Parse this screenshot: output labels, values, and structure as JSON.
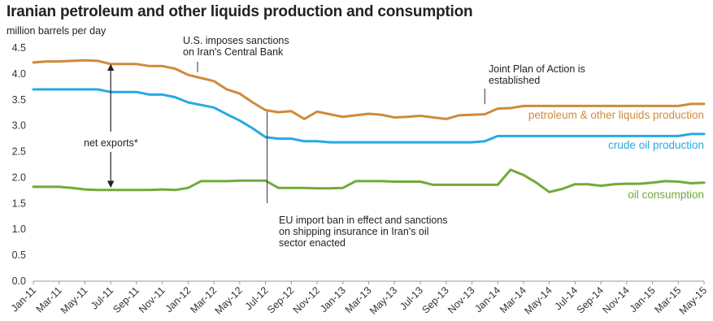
{
  "chart_data": {
    "type": "line",
    "title": "Iranian petroleum and other liquids production and consumption",
    "ylabel": "million barrels per day",
    "ylim": [
      0,
      4.5
    ],
    "yticks": [
      "0.0",
      "0.5",
      "1.0",
      "1.5",
      "2.0",
      "2.5",
      "3.0",
      "3.5",
      "4.0",
      "4.5"
    ],
    "grid": false,
    "x": [
      "Jan-11",
      "Feb-11",
      "Mar-11",
      "Apr-11",
      "May-11",
      "Jun-11",
      "Jul-11",
      "Aug-11",
      "Sep-11",
      "Oct-11",
      "Nov-11",
      "Dec-11",
      "Jan-12",
      "Feb-12",
      "Mar-12",
      "Apr-12",
      "May-12",
      "Jun-12",
      "Jul-12",
      "Aug-12",
      "Sep-12",
      "Oct-12",
      "Nov-12",
      "Dec-12",
      "Jan-13",
      "Feb-13",
      "Mar-13",
      "Apr-13",
      "May-13",
      "Jun-13",
      "Jul-13",
      "Aug-13",
      "Sep-13",
      "Oct-13",
      "Nov-13",
      "Dec-13",
      "Jan-14",
      "Feb-14",
      "Mar-14",
      "Apr-14",
      "May-14",
      "Jun-14",
      "Jul-14",
      "Aug-14",
      "Sep-14",
      "Oct-14",
      "Nov-14",
      "Dec-14",
      "Jan-15",
      "Feb-15",
      "Mar-15",
      "Apr-15",
      "May-15"
    ],
    "xtick_labels": [
      "Jan-11",
      "Mar-11",
      "May-11",
      "Jul-11",
      "Sep-11",
      "Nov-11",
      "Jan-12",
      "Mar-12",
      "May-12",
      "Jul-12",
      "Sep-12",
      "Nov-12",
      "Jan-13",
      "Mar-13",
      "May-13",
      "Jul-13",
      "Sep-13",
      "Nov-13",
      "Jan-14",
      "Mar-14",
      "May-14",
      "Jul-14",
      "Sep-14",
      "Nov-14",
      "Jan-15",
      "Mar-15",
      "May-15"
    ],
    "series": [
      {
        "name": "petroleum & other liquids production",
        "color": "#d08a3c",
        "values": [
          4.22,
          4.24,
          4.24,
          4.25,
          4.26,
          4.25,
          4.19,
          4.19,
          4.19,
          4.15,
          4.15,
          4.1,
          3.98,
          3.92,
          3.86,
          3.7,
          3.62,
          3.45,
          3.3,
          3.26,
          3.28,
          3.13,
          3.27,
          3.22,
          3.17,
          3.2,
          3.23,
          3.21,
          3.16,
          3.17,
          3.19,
          3.16,
          3.13,
          3.2,
          3.21,
          3.22,
          3.33,
          3.34,
          3.38,
          3.38,
          3.38,
          3.38,
          3.38,
          3.38,
          3.38,
          3.38,
          3.38,
          3.38,
          3.38,
          3.38,
          3.38,
          3.42,
          3.42
        ]
      },
      {
        "name": "crude oil production",
        "color": "#27aae1",
        "values": [
          3.7,
          3.7,
          3.7,
          3.7,
          3.7,
          3.7,
          3.65,
          3.65,
          3.65,
          3.6,
          3.6,
          3.55,
          3.45,
          3.4,
          3.35,
          3.22,
          3.1,
          2.95,
          2.78,
          2.75,
          2.75,
          2.7,
          2.7,
          2.68,
          2.68,
          2.68,
          2.68,
          2.68,
          2.68,
          2.68,
          2.68,
          2.68,
          2.68,
          2.68,
          2.68,
          2.7,
          2.8,
          2.8,
          2.8,
          2.8,
          2.8,
          2.8,
          2.8,
          2.8,
          2.8,
          2.8,
          2.8,
          2.8,
          2.8,
          2.8,
          2.8,
          2.84,
          2.84
        ]
      },
      {
        "name": "oil consumption",
        "color": "#71aa3b",
        "values": [
          1.82,
          1.82,
          1.82,
          1.8,
          1.77,
          1.76,
          1.76,
          1.76,
          1.76,
          1.76,
          1.77,
          1.76,
          1.8,
          1.93,
          1.93,
          1.93,
          1.94,
          1.94,
          1.94,
          1.8,
          1.8,
          1.8,
          1.79,
          1.79,
          1.8,
          1.93,
          1.93,
          1.93,
          1.92,
          1.92,
          1.92,
          1.86,
          1.86,
          1.86,
          1.86,
          1.86,
          1.86,
          2.15,
          2.05,
          1.9,
          1.72,
          1.78,
          1.87,
          1.87,
          1.84,
          1.87,
          1.88,
          1.88,
          1.9,
          1.93,
          1.92,
          1.89,
          1.9
        ]
      }
    ],
    "annotations": [
      {
        "lines": [
          "U.S. imposes sanctions",
          "on Iran's Central Bank"
        ],
        "at": "Jan-12"
      },
      {
        "lines": [
          "Joint Plan of Action is",
          "established"
        ],
        "at": "Dec-13"
      },
      {
        "lines": [
          "EU import ban in effect and sanctions",
          "on shipping insurance in Iran's oil",
          "sector enacted"
        ],
        "at": "Jul-12"
      },
      {
        "lines": [
          "net exports*"
        ],
        "at": "Jul-11"
      }
    ]
  }
}
